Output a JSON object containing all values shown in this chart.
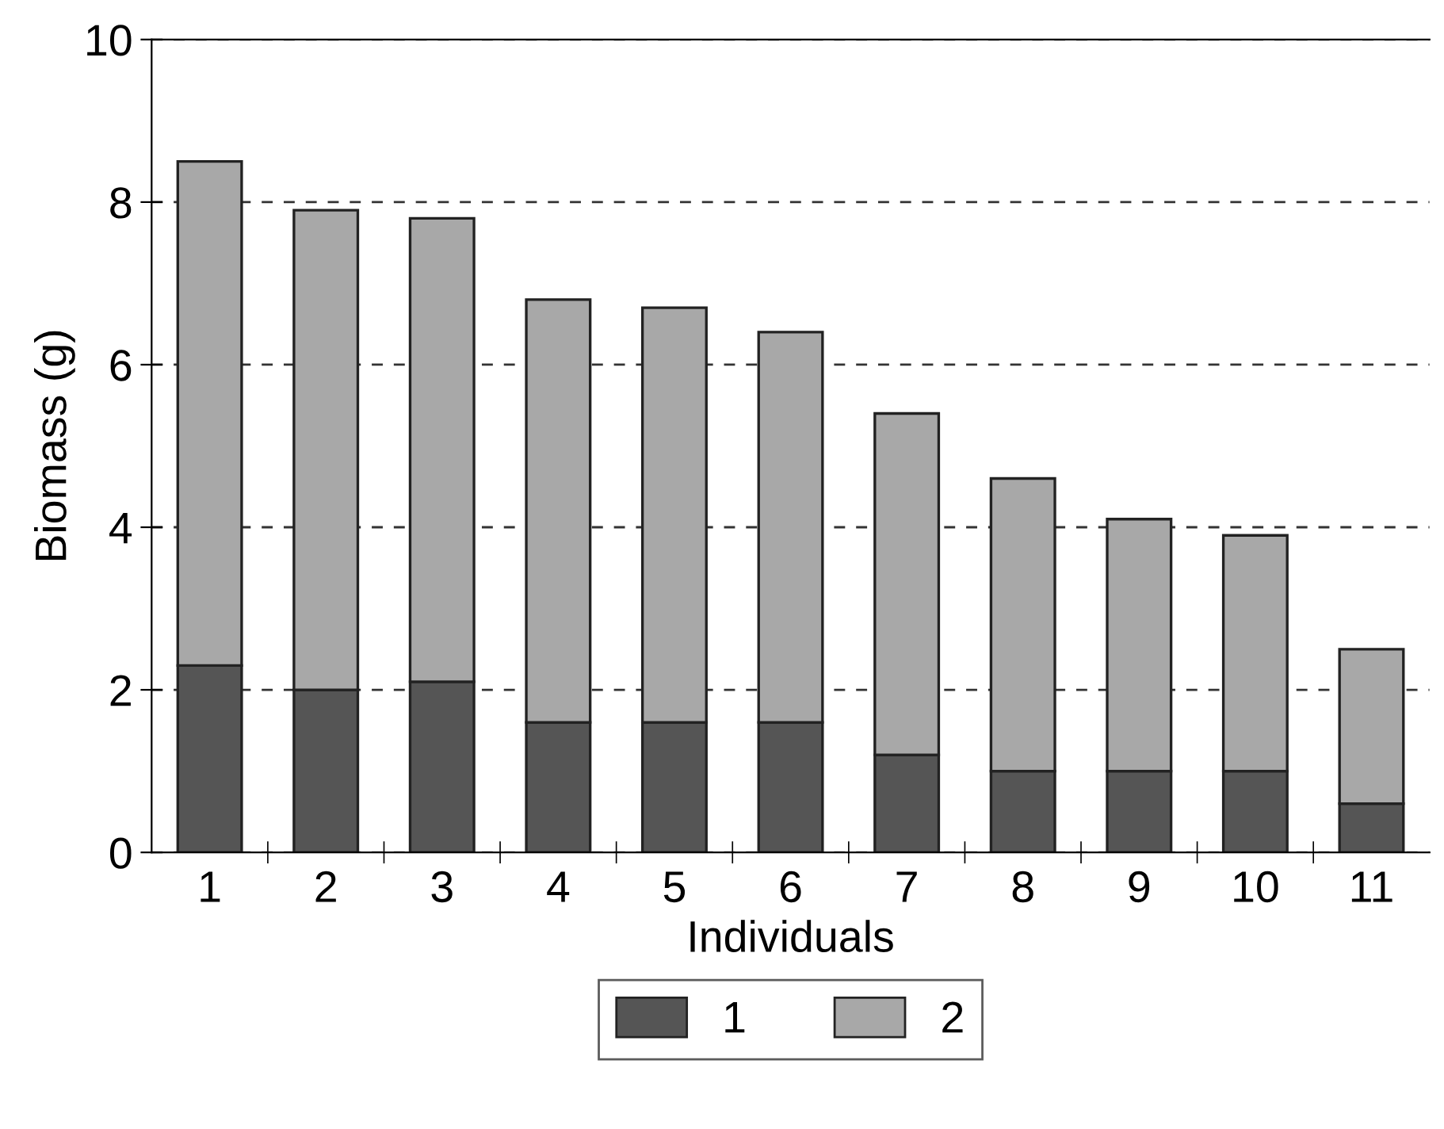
{
  "chart_data": {
    "type": "bar",
    "stacked": true,
    "xlabel": "Individuals",
    "ylabel": "Biomass (g)",
    "categories": [
      "1",
      "2",
      "3",
      "4",
      "5",
      "6",
      "7",
      "8",
      "9",
      "10",
      "11"
    ],
    "series": [
      {
        "name": "1",
        "color": "#555555",
        "values": [
          2.3,
          2.0,
          2.1,
          1.6,
          1.6,
          1.6,
          1.2,
          1.0,
          1.0,
          1.0,
          0.6
        ]
      },
      {
        "name": "2",
        "color": "#a8a8a8",
        "values": [
          6.2,
          5.9,
          5.7,
          5.2,
          5.1,
          4.8,
          4.2,
          3.6,
          3.1,
          2.9,
          1.9
        ]
      }
    ],
    "ylim": [
      0,
      10
    ],
    "yticks": [
      0,
      2,
      4,
      6,
      8,
      10
    ],
    "grid": "y",
    "legend": "bottom"
  }
}
